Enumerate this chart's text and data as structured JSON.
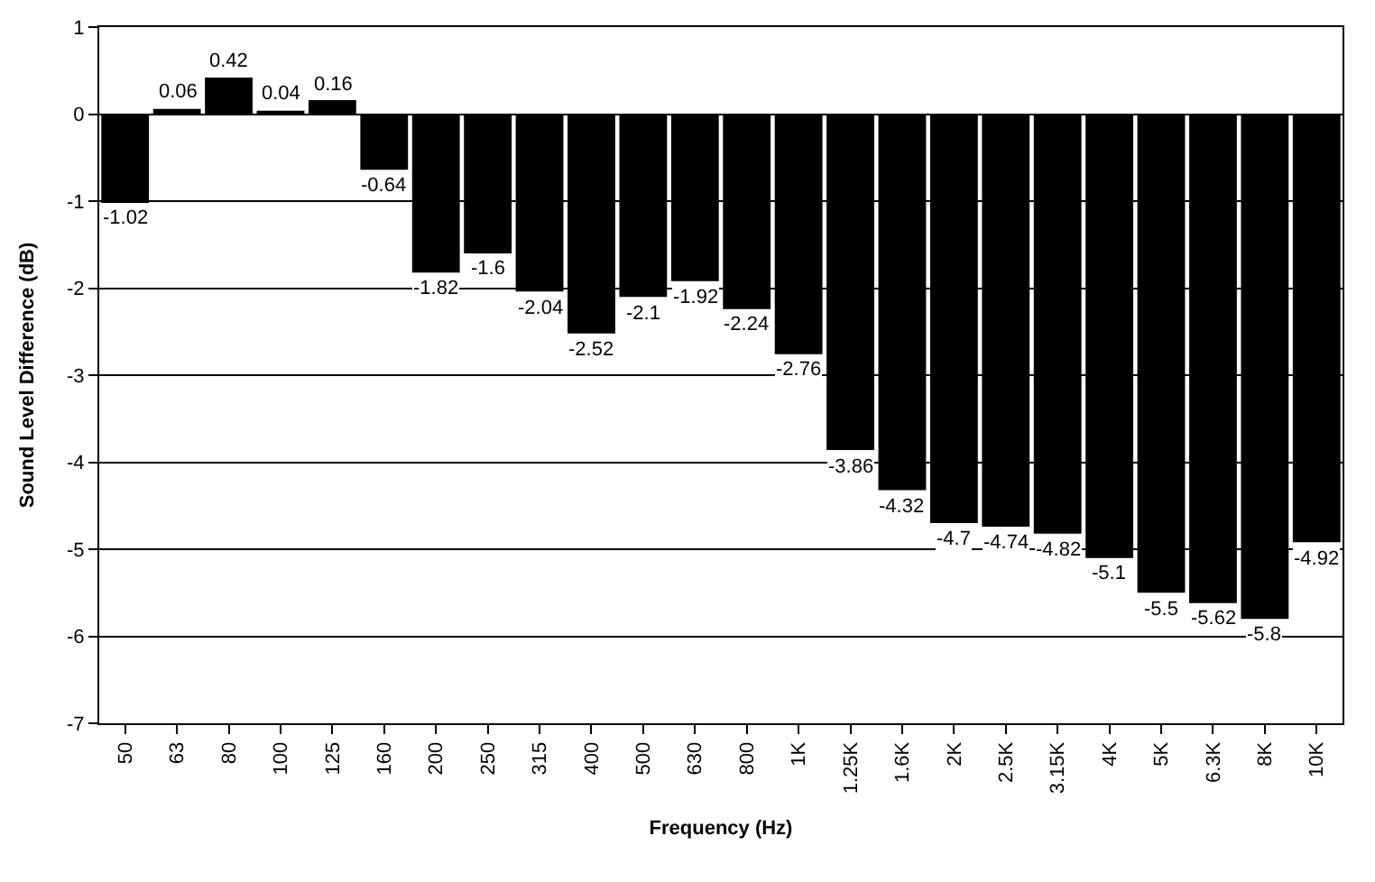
{
  "chart_data": {
    "type": "bar",
    "xlabel": "Frequency (Hz)",
    "ylabel": "Sound Level Difference (dB)",
    "categories": [
      "50",
      "63",
      "80",
      "100",
      "125",
      "160",
      "200",
      "250",
      "315",
      "400",
      "500",
      "630",
      "800",
      "1K",
      "1.25K",
      "1.6K",
      "2K",
      "2.5K",
      "3.15K",
      "4K",
      "5K",
      "6.3K",
      "8K",
      "10K"
    ],
    "values": [
      -1.02,
      0.06,
      0.42,
      0.04,
      0.16,
      -0.64,
      -1.82,
      -1.6,
      -2.04,
      -2.52,
      -2.1,
      -1.92,
      -2.24,
      -2.76,
      -3.86,
      -4.32,
      -4.7,
      -4.74,
      -4.82,
      -5.1,
      -5.5,
      -5.62,
      -5.8,
      -4.92
    ],
    "color": "#000000",
    "ylim": [
      -7,
      1
    ],
    "yticks": [
      -7,
      -6,
      -5,
      -4,
      -3,
      -2,
      -1,
      0,
      1
    ],
    "grid": "y",
    "data_labels": true
  }
}
